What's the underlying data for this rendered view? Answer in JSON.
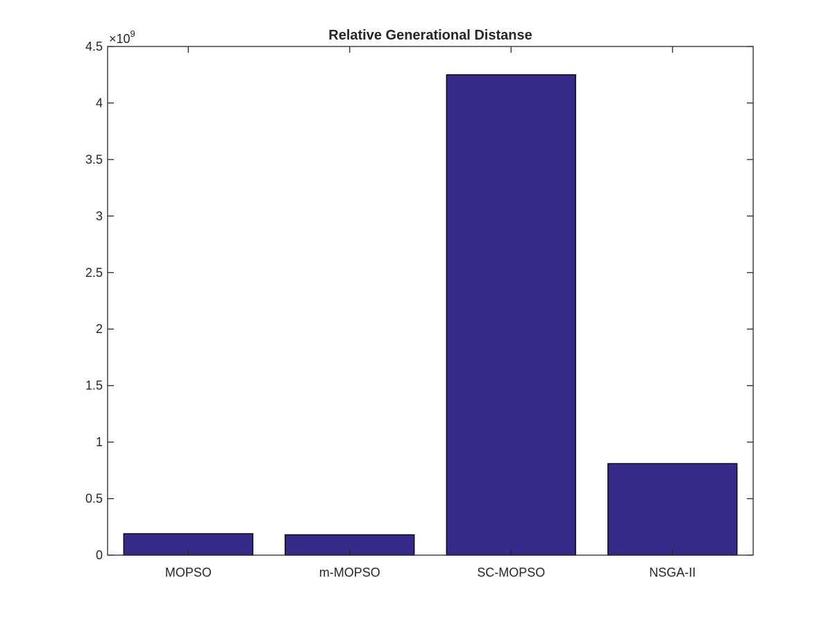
{
  "chart_data": {
    "type": "bar",
    "title": "Relative Generational Distanse",
    "xlabel": "",
    "ylabel": "",
    "categories": [
      "MOPSO",
      "m-MOPSO",
      "SC-MOPSO",
      "NSGA-II"
    ],
    "series": [
      {
        "values": [
          190000000,
          180000000,
          4250000000,
          810000000
        ]
      }
    ],
    "ylim": [
      0,
      4500000000
    ],
    "y_ticks": [
      0,
      500000000,
      1000000000,
      1500000000,
      2000000000,
      2500000000,
      3000000000,
      3500000000,
      4000000000,
      4500000000
    ],
    "y_tick_labels": [
      "0",
      "0.5",
      "1",
      "1.5",
      "2",
      "2.5",
      "3",
      "3.5",
      "4",
      "4.5"
    ],
    "y_exponent_label": "×10",
    "y_exponent_power": "9",
    "bar_color": "#352a87",
    "grid": false,
    "legend": false
  }
}
